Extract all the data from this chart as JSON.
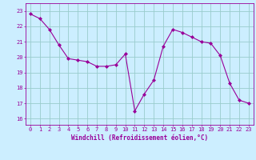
{
  "x": [
    0,
    1,
    2,
    3,
    4,
    5,
    6,
    7,
    8,
    9,
    10,
    11,
    12,
    13,
    14,
    15,
    16,
    17,
    18,
    19,
    20,
    21,
    22,
    23
  ],
  "y": [
    22.8,
    22.5,
    21.8,
    20.8,
    19.9,
    19.8,
    19.7,
    19.4,
    19.4,
    19.5,
    20.2,
    16.5,
    17.6,
    18.5,
    20.7,
    21.8,
    21.6,
    21.3,
    21.0,
    20.9,
    20.1,
    18.3,
    17.2,
    17.0
  ],
  "line_color": "#990099",
  "marker": "D",
  "marker_size": 2.0,
  "bg_color": "#cceeff",
  "grid_color": "#99cccc",
  "xlabel": "Windchill (Refroidissement éolien,°C)",
  "xlabel_color": "#990099",
  "ylabel_ticks": [
    16,
    17,
    18,
    19,
    20,
    21,
    22,
    23
  ],
  "ylim": [
    15.6,
    23.5
  ],
  "xlim": [
    -0.5,
    23.5
  ],
  "tick_color": "#990099",
  "spine_color": "#990099",
  "tick_fontsize": 5.0,
  "xlabel_fontsize": 5.5,
  "linewidth": 0.8
}
